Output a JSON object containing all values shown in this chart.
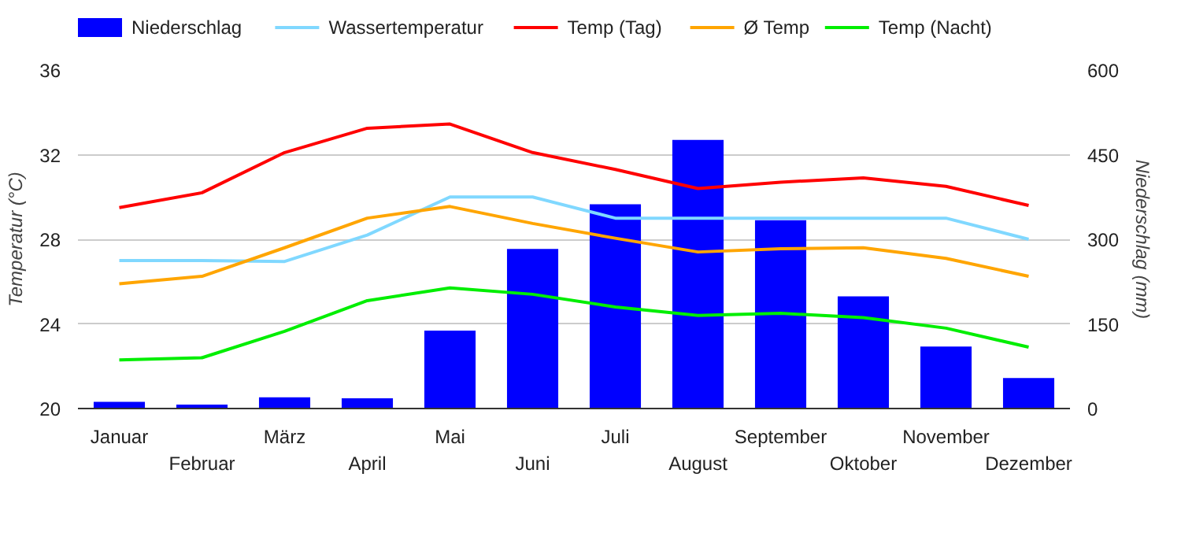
{
  "chart_data": {
    "type": "line",
    "categories": [
      "Januar",
      "Februar",
      "März",
      "April",
      "Mai",
      "Juni",
      "Juli",
      "August",
      "September",
      "Oktober",
      "November",
      "Dezember"
    ],
    "ylabel": "Temperatur (°C)",
    "y2label": "Niederschlag (mm)",
    "ylim": [
      20,
      36
    ],
    "yticks": [
      20,
      24,
      28,
      32,
      36
    ],
    "y2lim": [
      0,
      600
    ],
    "y2ticks": [
      0,
      150,
      300,
      450,
      600
    ],
    "grid": "y",
    "legend": "top",
    "marker": "none",
    "line_style": "solid",
    "series": [
      {
        "name": "Niederschlag",
        "type": "bar",
        "axis": "y2",
        "color": "#0000ff",
        "values": [
          12,
          7,
          20,
          18,
          138,
          283,
          362,
          476,
          334,
          199,
          110,
          54
        ]
      },
      {
        "name": "Wassertemperatur",
        "color": "#80d8ff",
        "values": [
          27.0,
          27.0,
          26.95,
          28.2,
          30.0,
          30.0,
          29.0,
          29.0,
          29.0,
          29.0,
          29.0,
          28.0
        ]
      },
      {
        "name": "Temp (Tag)",
        "color": "#ff0000",
        "values": [
          29.5,
          30.2,
          32.1,
          33.25,
          33.45,
          32.1,
          31.3,
          30.4,
          30.7,
          30.9,
          30.5,
          29.6
        ]
      },
      {
        "name": "Ø Temp",
        "color": "#ffa500",
        "values": [
          25.9,
          26.25,
          27.6,
          29.0,
          29.55,
          28.75,
          28.05,
          27.4,
          27.55,
          27.6,
          27.1,
          26.25
        ]
      },
      {
        "name": "Temp (Nacht)",
        "color": "#00ee00",
        "values": [
          22.3,
          22.4,
          23.65,
          25.1,
          25.7,
          25.4,
          24.8,
          24.4,
          24.5,
          24.3,
          23.8,
          22.9
        ]
      }
    ]
  }
}
